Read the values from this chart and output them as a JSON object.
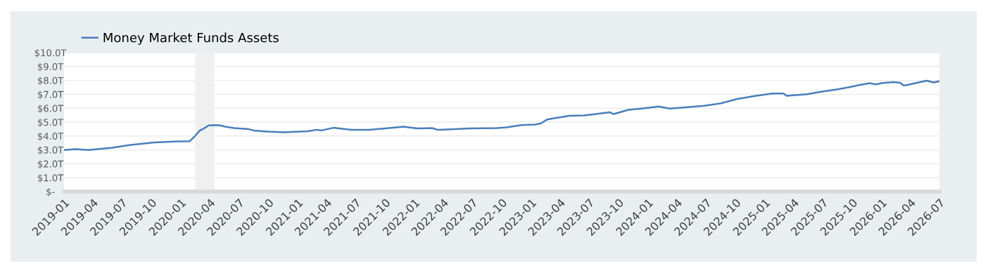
{
  "chart_data": {
    "type": "line",
    "x": [
      "2019-01-01",
      "2019-02-05",
      "2019-03-18",
      "2019-06-01",
      "2019-07-28",
      "2019-10-10",
      "2019-12-22",
      "2020-01-29",
      "2020-02-13",
      "2020-03-01",
      "2020-03-13",
      "2020-03-28",
      "2020-04-19",
      "2020-05-04",
      "2020-05-19",
      "2020-06-16",
      "2020-08-01",
      "2020-08-16",
      "2020-09-28",
      "2020-11-19",
      "2021-02-01",
      "2021-03-01",
      "2021-03-16",
      "2021-04-22",
      "2021-06-19",
      "2021-08-10",
      "2021-10-01",
      "2021-11-28",
      "2022-01-10",
      "2022-02-25",
      "2022-03-16",
      "2022-05-07",
      "2022-06-22",
      "2022-09-16",
      "2022-10-16",
      "2022-12-01",
      "2023-01-13",
      "2023-02-01",
      "2023-02-19",
      "2023-03-10",
      "2023-05-01",
      "2023-06-16",
      "2023-09-04",
      "2023-09-16",
      "2023-11-01",
      "2023-12-16",
      "2024-02-04",
      "2024-03-10",
      "2024-06-25",
      "2024-08-16",
      "2024-10-07",
      "2024-12-04",
      "2025-01-25",
      "2025-02-28",
      "2025-03-10",
      "2025-05-13",
      "2025-06-25",
      "2025-08-10",
      "2025-09-22",
      "2025-10-22",
      "2025-11-25",
      "2025-12-13",
      "2026-01-04",
      "2026-02-07",
      "2026-02-28",
      "2026-03-10",
      "2026-03-19",
      "2026-04-16",
      "2026-05-22",
      "2026-06-13",
      "2026-07-01"
    ],
    "series": [
      {
        "name": "Money Market Funds Assets",
        "color": "#4a7ebb",
        "values": [
          2.99,
          3.06,
          2.99,
          3.16,
          3.36,
          3.53,
          3.61,
          3.63,
          3.95,
          4.4,
          4.54,
          4.76,
          4.79,
          4.76,
          4.67,
          4.57,
          4.49,
          4.4,
          4.32,
          4.27,
          4.34,
          4.45,
          4.4,
          4.59,
          4.45,
          4.45,
          4.54,
          4.67,
          4.54,
          4.57,
          4.44,
          4.5,
          4.55,
          4.57,
          4.62,
          4.79,
          4.82,
          4.91,
          5.18,
          5.26,
          5.45,
          5.48,
          5.71,
          5.58,
          5.88,
          5.98,
          6.12,
          5.97,
          6.17,
          6.35,
          6.67,
          6.89,
          7.06,
          7.06,
          6.89,
          7.01,
          7.18,
          7.34,
          7.51,
          7.66,
          7.8,
          7.71,
          7.82,
          7.88,
          7.83,
          7.65,
          7.65,
          7.8,
          7.98,
          7.85,
          7.95
        ]
      }
    ],
    "xlim": [
      "2019-01",
      "2026-07"
    ],
    "xticks": [
      "2019-01",
      "2019-04",
      "2019-07",
      "2019-10",
      "2020-01",
      "2020-04",
      "2020-07",
      "2020-10",
      "2021-01",
      "2021-04",
      "2021-07",
      "2021-10",
      "2022-01",
      "2022-04",
      "2022-07",
      "2022-10",
      "2023-01",
      "2023-04",
      "2023-07",
      "2023-10",
      "2024-01",
      "2024-04",
      "2024-07",
      "2024-10",
      "2025-01",
      "2025-04",
      "2025-07",
      "2025-10",
      "2026-01",
      "2026-04",
      "2026-07"
    ],
    "ylim": [
      0,
      10
    ],
    "yticks": [
      {
        "value": 0,
        "label": "$-"
      },
      {
        "value": 1,
        "label": "$1.0T"
      },
      {
        "value": 2,
        "label": "$2.0T"
      },
      {
        "value": 3,
        "label": "$3.0T"
      },
      {
        "value": 4,
        "label": "$4.0T"
      },
      {
        "value": 5,
        "label": "$5.0T"
      },
      {
        "value": 6,
        "label": "$6.0T"
      },
      {
        "value": 7,
        "label": "$7.0T"
      },
      {
        "value": 8,
        "label": "$8.0T"
      },
      {
        "value": 9,
        "label": "$9.0T"
      },
      {
        "value": 10,
        "label": "$10.0T"
      }
    ],
    "bands": [
      {
        "axis": "x",
        "from": "2020-02-15",
        "to": "2020-04-15",
        "color": "#f0f0f0"
      }
    ],
    "grid": "y",
    "legend": "top left",
    "marker": "none",
    "line_style": "solid"
  }
}
